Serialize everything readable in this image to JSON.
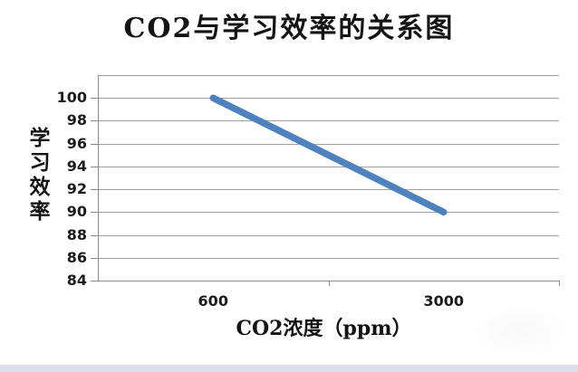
{
  "chart_data": {
    "type": "line",
    "title": "CO2与学习效率的关系图",
    "xlabel": "CO2浓度（ppm）",
    "ylabel": "学习效率",
    "categories": [
      "600",
      "3000"
    ],
    "x": [
      600,
      3000
    ],
    "series": [
      {
        "name": "学习效率",
        "values": [
          100,
          90
        ]
      }
    ],
    "y_ticks": [
      84,
      86,
      88,
      90,
      92,
      94,
      96,
      98,
      100
    ],
    "ylim": [
      84,
      102
    ],
    "xlim_type": "category",
    "grid": true,
    "legend": false,
    "colors": {
      "line": "#4f81bd",
      "gridline": "#9f9f9f",
      "axis": "#8a8a8a",
      "text": "#1c1c1c",
      "bottom_strip": "#dbe0ee"
    }
  }
}
